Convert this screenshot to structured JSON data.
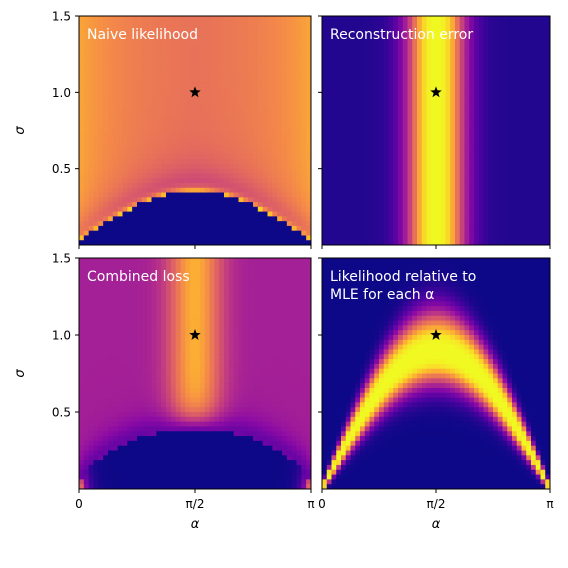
{
  "chart_data": [
    {
      "type": "heatmap",
      "title": "Naive likelihood",
      "xlabel": "",
      "ylabel": "σ",
      "xlim": [
        0,
        3.14159
      ],
      "ylim": [
        0,
        1.5
      ],
      "x_tick_labels": [],
      "y_tick_labels": [
        "0.5",
        "1.0",
        "1.5"
      ],
      "colormap": "plasma",
      "marker": {
        "symbol": "star",
        "x": 1.5708,
        "y": 1.0
      },
      "surface": "bright everywhere above a dark dome; dome peaks near σ≈0.33 at α=π/2; brightest at the left and right edges"
    },
    {
      "type": "heatmap",
      "title": "Reconstruction error",
      "xlabel": "",
      "ylabel": "",
      "xlim": [
        0,
        3.14159
      ],
      "ylim": [
        0,
        1.5
      ],
      "x_tick_labels": [],
      "y_tick_labels": [],
      "colormap": "plasma",
      "marker": {
        "symbol": "star",
        "x": 1.5708,
        "y": 1.0
      },
      "surface": "independent of σ; bright vertical band centered at α=π/2, dark toward both edges"
    },
    {
      "type": "heatmap",
      "title": "Combined loss",
      "xlabel": "α",
      "ylabel": "σ",
      "xlim": [
        0,
        3.14159
      ],
      "ylim": [
        0,
        1.5
      ],
      "x_tick_labels": [
        "0",
        "π/2",
        "π"
      ],
      "y_tick_labels": [
        "0.5",
        "1.0",
        "1.5"
      ],
      "colormap": "plasma",
      "marker": {
        "symbol": "star",
        "x": 1.5708,
        "y": 1.0
      },
      "surface": "orange vertical band at α=π/2 above a dark region reaching σ≈0.38; small bright spots in the bottom corners"
    },
    {
      "type": "heatmap",
      "title": "Likelihood relative to MLE for each α",
      "title_lines": [
        "Likelihood relative to",
        "MLE for each α"
      ],
      "xlabel": "α",
      "ylabel": "",
      "xlim": [
        0,
        3.14159
      ],
      "ylim": [
        0,
        1.5
      ],
      "x_tick_labels": [
        "0",
        "π/2",
        "π"
      ],
      "y_tick_labels": [],
      "colormap": "plasma",
      "marker": {
        "symbol": "star",
        "x": 1.5708,
        "y": 1.0
      },
      "surface": "bright yellow arch (σ from about 0.7 to 1.1 at α=π/2) falling to zero at α=0 and α=π; dark elsewhere"
    }
  ]
}
